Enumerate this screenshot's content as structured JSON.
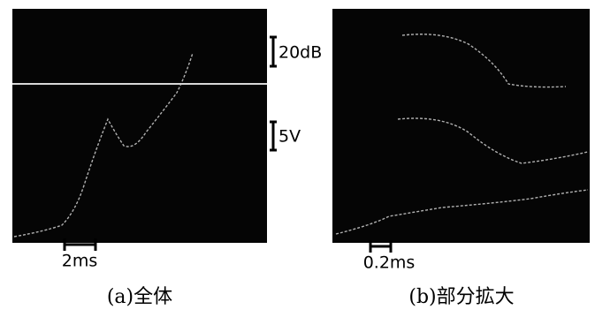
{
  "panels": [
    {
      "amplitude_scale": "20dB",
      "voltage_scale": "5V",
      "time_scale": "2ms",
      "caption": "(a)全体"
    },
    {
      "time_scale": "0.2ms",
      "caption": "(b)部分拡大"
    }
  ]
}
